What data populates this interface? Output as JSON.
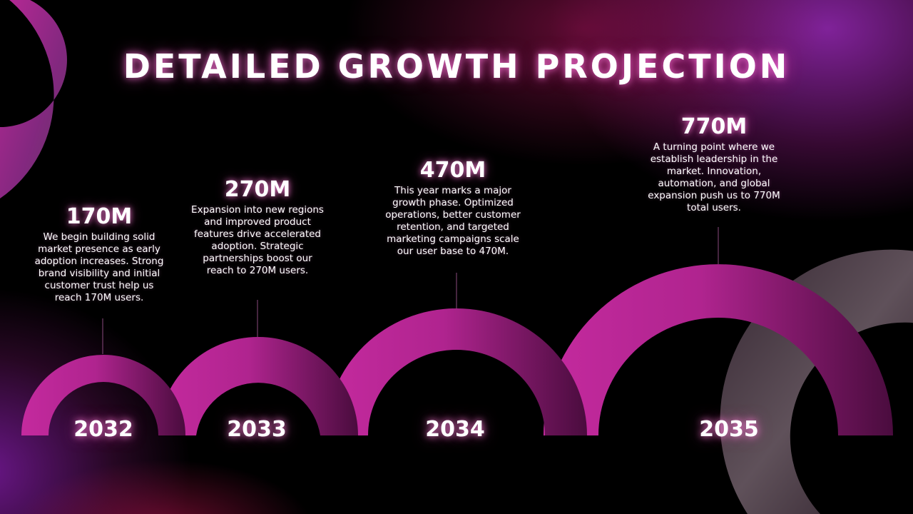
{
  "title": "DETAILED GROWTH PROJECTION",
  "stages": [
    {
      "year": "2032",
      "value": "170M",
      "description": "We begin building solid market presence as early adoption increases. Strong brand visibility and initial customer trust help us reach 170M users."
    },
    {
      "year": "2033",
      "value": "270M",
      "description": "Expansion into new regions and improved product features drive accelerated adoption. Strategic partnerships boost our reach to 270M users."
    },
    {
      "year": "2034",
      "value": "470M",
      "description": "This year marks a major growth phase. Optimized operations, better customer retention, and targeted marketing campaigns scale our user base to 470M."
    },
    {
      "year": "2035",
      "value": "770M",
      "description": "A turning point where we establish leadership in the market. Innovation, automation, and global expansion push us to 770M total users."
    }
  ],
  "colors": {
    "arc_light": "#c42a9e",
    "arc_dark": "#5a0f4a",
    "background": "#000000"
  }
}
